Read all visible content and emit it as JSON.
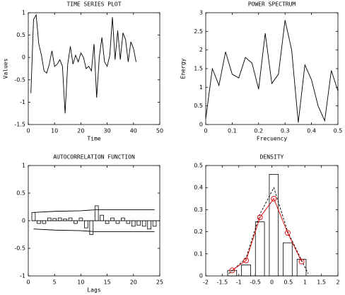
{
  "chart_data": [
    {
      "type": "line",
      "title": "TIME SERIES PLOT",
      "xlabel": "Time",
      "ylabel": "Values",
      "xlim": [
        0,
        50
      ],
      "xticks": [
        0,
        10,
        20,
        30,
        40,
        50
      ],
      "ylim": [
        -1.5,
        1
      ],
      "yticks": [
        -1.5,
        -1,
        -0.5,
        0,
        0.5,
        1
      ],
      "series": [
        {
          "type": "line",
          "color": "#000000",
          "x": [
            1,
            2,
            3,
            4,
            5,
            6,
            7,
            8,
            9,
            10,
            11,
            12,
            13,
            14,
            15,
            16,
            17,
            18,
            19,
            20,
            21,
            22,
            23,
            24,
            25,
            26,
            27,
            28,
            29,
            30,
            31,
            32,
            33,
            34,
            35,
            36,
            37,
            38,
            39,
            40,
            41
          ],
          "values": [
            -0.8,
            0.85,
            0.95,
            0.3,
            0.05,
            -0.3,
            -0.35,
            -0.15,
            0.15,
            -0.2,
            -0.15,
            -0.05,
            -0.2,
            -1.25,
            -0.15,
            0.25,
            -0.15,
            0.05,
            -0.1,
            0.1,
            0,
            -0.25,
            -0.2,
            -0.3,
            0.3,
            -0.9,
            0,
            0.45,
            -0.1,
            -0.2,
            0.05,
            0.9,
            -0.05,
            0.6,
            -0.05,
            0.55,
            0.4,
            -0.1,
            0.35,
            0.2,
            -0.1
          ]
        }
      ]
    },
    {
      "type": "line",
      "title": "POWER SPECTRUM",
      "xlabel": "Frecuency",
      "ylabel": "Energy",
      "xlim": [
        0,
        0.5
      ],
      "xticks": [
        0,
        0.1,
        0.2,
        0.3,
        0.4,
        0.5
      ],
      "ylim": [
        0,
        3
      ],
      "yticks": [
        0,
        0.5,
        1,
        1.5,
        2,
        2.5,
        3
      ],
      "series": [
        {
          "type": "line",
          "color": "#000000",
          "x": [
            0,
            0.025,
            0.05,
            0.075,
            0.1,
            0.125,
            0.15,
            0.175,
            0.2,
            0.225,
            0.25,
            0.275,
            0.3,
            0.325,
            0.35,
            0.375,
            0.4,
            0.425,
            0.45,
            0.475,
            0.5
          ],
          "values": [
            0.15,
            1.5,
            1.05,
            1.95,
            1.35,
            1.25,
            1.8,
            1.65,
            0.95,
            2.45,
            1.1,
            1.35,
            2.8,
            2.0,
            0.05,
            1.6,
            1.2,
            0.5,
            0.1,
            1.45,
            0.9
          ]
        }
      ]
    },
    {
      "type": "bar",
      "title": "AUTOCORRELATION FUNCTION",
      "xlabel": "Lags",
      "xlim": [
        0,
        25
      ],
      "xticks": [
        0,
        5,
        10,
        15,
        20,
        25
      ],
      "ylim": [
        -1,
        1
      ],
      "yticks": [
        -1,
        -0.5,
        0,
        0.5,
        1
      ],
      "series": [
        {
          "type": "bar",
          "color": "#000000",
          "fill": "#ffffff",
          "x": [
            1,
            2,
            3,
            4,
            5,
            6,
            7,
            8,
            9,
            10,
            11,
            12,
            13,
            14,
            15,
            16,
            17,
            18,
            19,
            20,
            21,
            22,
            23,
            24
          ],
          "values": [
            0.15,
            -0.05,
            -0.05,
            0.05,
            0.04,
            0.05,
            0.03,
            0.05,
            -0.05,
            0.05,
            -0.13,
            -0.25,
            0.27,
            0.1,
            -0.05,
            0.05,
            -0.05,
            0.05,
            -0.05,
            -0.1,
            -0.08,
            -0.1,
            -0.15,
            -0.1
          ]
        },
        {
          "type": "line",
          "color": "#000000",
          "x": [
            1,
            5,
            10,
            13,
            24
          ],
          "values": [
            0.15,
            0.17,
            0.18,
            0.2,
            0.2
          ]
        },
        {
          "type": "line",
          "color": "#000000",
          "x": [
            1,
            5,
            10,
            13,
            24
          ],
          "values": [
            -0.15,
            -0.17,
            -0.18,
            -0.2,
            -0.2
          ]
        }
      ]
    },
    {
      "type": "bar",
      "title": "DENSITY",
      "xlim": [
        -2,
        2
      ],
      "xticks": [
        -2,
        -1.5,
        -1,
        -0.5,
        0,
        0.5,
        1,
        1.5,
        2
      ],
      "ylim": [
        0,
        0.5
      ],
      "yticks": [
        0,
        0.1,
        0.2,
        0.3,
        0.4,
        0.5
      ],
      "series": [
        {
          "type": "bar",
          "color": "#000000",
          "fill": "#ffffff",
          "x": [
            -1.2,
            -0.78,
            -0.36,
            0.06,
            0.48,
            0.9
          ],
          "values": [
            0.025,
            0.05,
            0.245,
            0.46,
            0.15,
            0.075
          ]
        },
        {
          "type": "line",
          "color": "#000000",
          "dash": true,
          "x": [
            -1.3,
            -0.78,
            -0.36,
            0.06,
            0.48,
            1.1
          ],
          "values": [
            0.01,
            0.08,
            0.28,
            0.4,
            0.2,
            0.01
          ]
        },
        {
          "type": "line",
          "color": "#e00000",
          "marker": "circle",
          "x": [
            -1.2,
            -0.78,
            -0.36,
            0.06,
            0.48,
            0.9
          ],
          "values": [
            0.025,
            0.07,
            0.265,
            0.35,
            0.195,
            0.065
          ]
        }
      ]
    }
  ]
}
